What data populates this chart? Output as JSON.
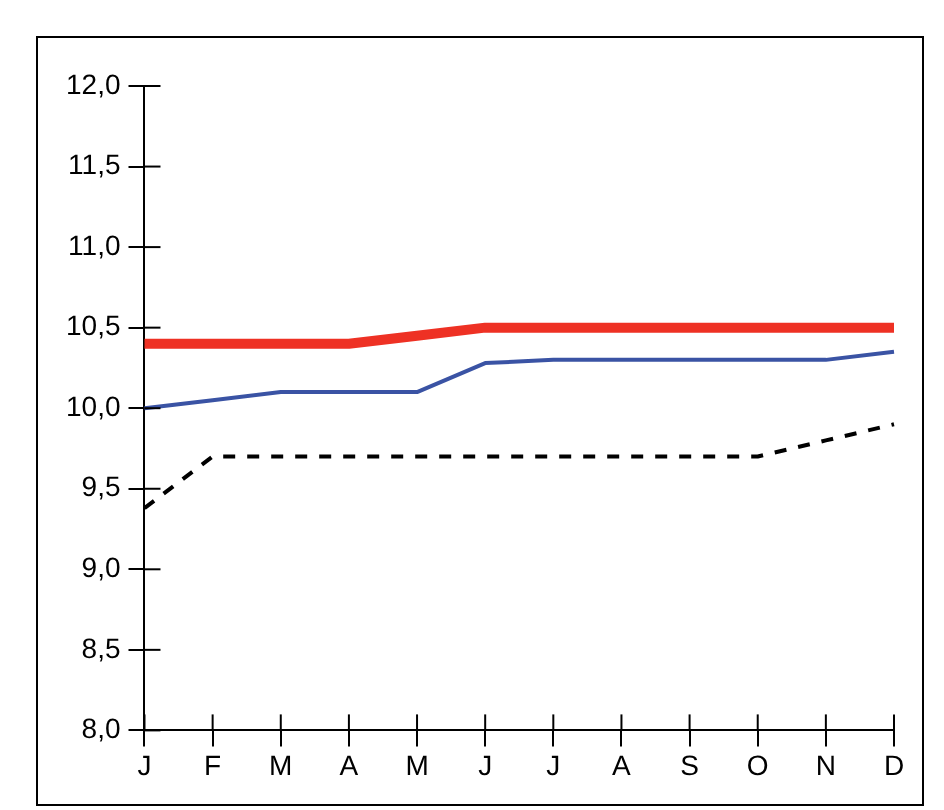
{
  "chart_data": {
    "type": "line",
    "categories": [
      "J",
      "F",
      "M",
      "A",
      "M",
      "J",
      "J",
      "A",
      "S",
      "O",
      "N",
      "D"
    ],
    "series": [
      {
        "color": "#ee3124",
        "values": [
          10.4,
          10.4,
          10.4,
          10.4,
          10.45,
          10.5,
          10.5,
          10.5,
          10.5,
          10.5,
          10.5,
          10.5
        ],
        "line_style": "solid"
      },
      {
        "color": "#3a53a4",
        "values": [
          10.0,
          10.05,
          10.1,
          10.1,
          10.1,
          10.28,
          10.3,
          10.3,
          10.3,
          10.3,
          10.3,
          10.35
        ],
        "line_style": "solid"
      },
      {
        "color": "#000000",
        "values": [
          9.38,
          9.7,
          9.7,
          9.7,
          9.7,
          9.7,
          9.7,
          9.7,
          9.7,
          9.7,
          9.8,
          9.9
        ],
        "line_style": "dashed"
      }
    ],
    "ylim": [
      8,
      12
    ],
    "yticks": [
      {
        "value": 8,
        "label": "8,0"
      },
      {
        "value": 8.5,
        "label": "8,5"
      },
      {
        "value": 9,
        "label": "9,0"
      },
      {
        "value": 9.5,
        "label": "9,5"
      },
      {
        "value": 10,
        "label": "10,0"
      },
      {
        "value": 10.5,
        "label": "10,5"
      },
      {
        "value": 11,
        "label": "11,0"
      },
      {
        "value": 11.5,
        "label": "11,5"
      },
      {
        "value": 12,
        "label": "12,0"
      }
    ],
    "grid": false,
    "legend": false,
    "marker": "none"
  }
}
